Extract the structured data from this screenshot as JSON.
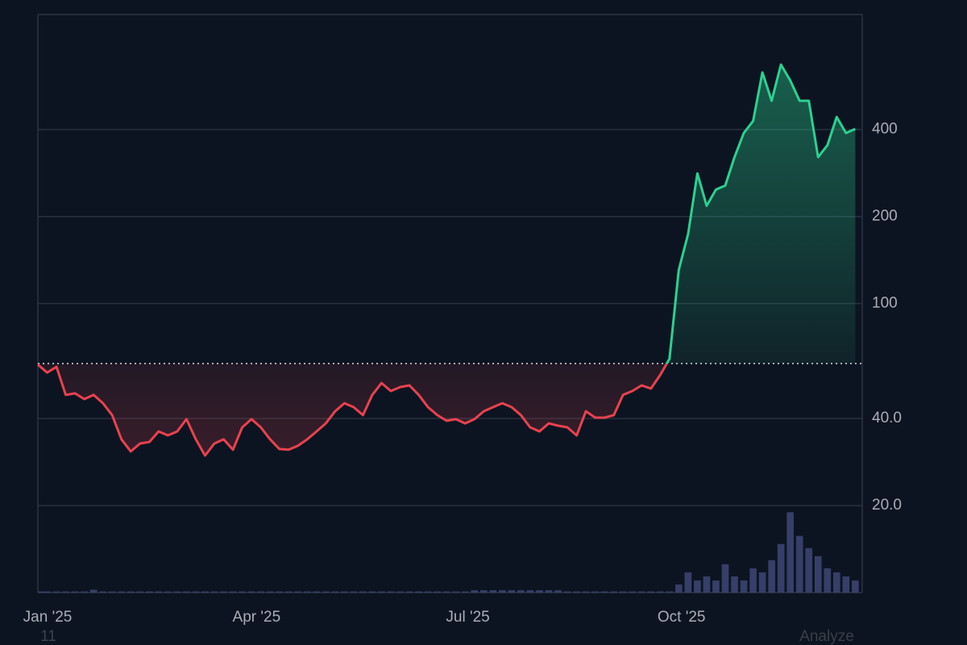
{
  "chart_data": {
    "type": "line",
    "ylog": true,
    "ylim": [
      10,
      1000
    ],
    "yticks": [
      {
        "value": 20,
        "label": "20.0"
      },
      {
        "value": 40,
        "label": "40.0"
      },
      100,
      200,
      400
    ],
    "y2lim": [
      0,
      100
    ],
    "xlim": [
      0,
      88.75
    ],
    "xticks": [
      {
        "value": 0,
        "label": "Jan '25"
      },
      {
        "value": 22.5,
        "label": "Apr '25"
      },
      {
        "value": 45.25,
        "label": "Jul '25"
      },
      {
        "value": 68.25,
        "label": "Oct '25"
      }
    ],
    "grid": true,
    "baseline": 62,
    "up_color": "#2bd18f",
    "down_color": "#e8424f",
    "series": [
      {
        "color": "#2bd18f",
        "values": [
          61.5,
          57.7,
          60.4,
          48.3,
          48.9,
          46.7,
          48.3,
          45.2,
          41.1,
          33.9,
          30.8,
          32.8,
          33.2,
          36.1,
          35.0,
          36.1,
          39.8,
          33.9,
          29.8,
          32.8,
          33.9,
          31.2,
          37.3,
          39.8,
          37.3,
          33.9,
          31.4,
          31.2,
          32.2,
          33.9,
          36.1,
          38.5,
          42.4,
          45.2,
          43.8,
          41.1,
          48.3,
          53.1,
          49.8,
          51.4,
          52.1,
          48.3,
          43.8,
          41.1,
          39.3,
          39.8,
          38.5,
          39.8,
          42.4,
          43.8,
          45.2,
          43.8,
          41.1,
          37.3,
          36.1,
          38.5,
          37.8,
          37.3,
          35.0,
          42.4,
          40.3,
          40.3,
          41.1,
          48.3,
          49.8,
          52.1,
          50.8,
          56.6,
          64.4,
          130.6,
          174,
          282,
          218,
          248,
          256,
          321,
          389,
          428,
          630,
          503,
          671,
          591,
          503,
          503,
          321,
          353,
          442,
          389,
          402
        ]
      },
      {
        "axis": "y2",
        "color": "#3d4674",
        "values": [
          0.2,
          0.2,
          0.2,
          0.2,
          0.2,
          0.2,
          0.5,
          0.2,
          0.2,
          0.2,
          0.2,
          0.2,
          0.2,
          0.2,
          0.2,
          0.2,
          0.2,
          0.2,
          0.2,
          0.2,
          0.2,
          0.2,
          0.2,
          0.2,
          0.2,
          0.2,
          0.2,
          0.2,
          0.2,
          0.2,
          0.2,
          0.2,
          0.2,
          0.2,
          0.2,
          0.2,
          0.2,
          0.2,
          0.2,
          0.2,
          0.2,
          0.2,
          0.2,
          0.2,
          0.2,
          0.2,
          0.2,
          0.4,
          0.4,
          0.4,
          0.4,
          0.4,
          0.4,
          0.4,
          0.4,
          0.4,
          0.4,
          0.2,
          0.2,
          0.2,
          0.2,
          0.2,
          0.2,
          0.2,
          0.2,
          0.2,
          0.2,
          0.2,
          0.2,
          1.4,
          3.5,
          2.1,
          2.8,
          2.1,
          4.9,
          2.8,
          2.1,
          4.2,
          3.5,
          5.6,
          8.4,
          13.9,
          9.8,
          7.7,
          6.3,
          4.2,
          3.5,
          2.8,
          2.1
        ]
      }
    ],
    "annotations": [
      "11",
      "Analyze"
    ]
  }
}
